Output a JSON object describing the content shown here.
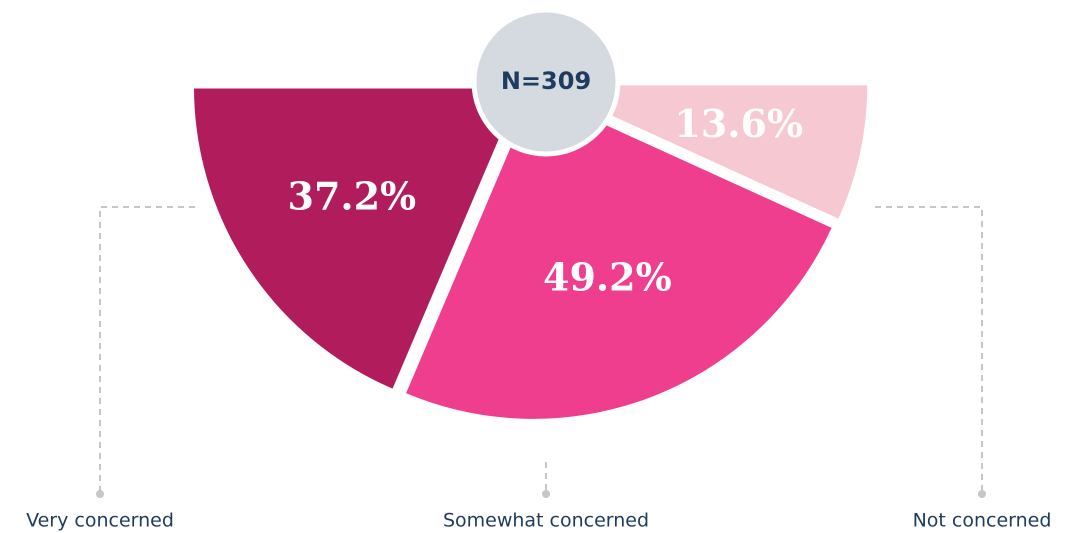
{
  "chart_data": {
    "type": "pie",
    "categories": [
      "Very concerned",
      "Somewhat concerned",
      "Not concerned"
    ],
    "values": [
      37.2,
      49.2,
      13.6
    ],
    "value_labels": [
      "37.2%",
      "49.2%",
      "13.6%"
    ],
    "colors": [
      "#b01c5c",
      "#ef3e8e",
      "#f5c8d2"
    ],
    "annotation": "N=309"
  }
}
